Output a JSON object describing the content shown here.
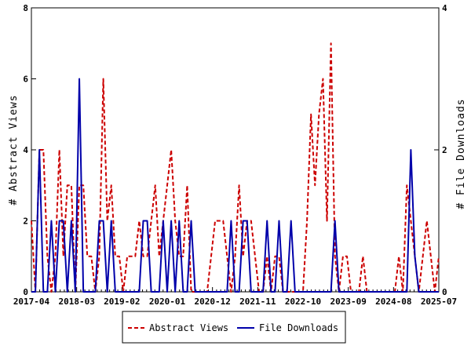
{
  "chart_data": {
    "type": "line",
    "y_left_label": "# Abstract Views",
    "y_right_label": "# File Downloads",
    "y_left_ticks": [
      "0",
      "2",
      "4",
      "6",
      "8"
    ],
    "y_right_ticks": [
      "0",
      "2",
      "4"
    ],
    "ylim_left": [
      0,
      8
    ],
    "ylim_right": [
      0,
      4
    ],
    "x_tick_labels": [
      "2017-04",
      "2018-03",
      "2019-02",
      "2020-01",
      "2020-12",
      "2021-11",
      "2022-10",
      "2023-09",
      "2024-08",
      "2025-07"
    ],
    "x_months": 99,
    "grid": false,
    "legend_position": "bottom-center",
    "series": [
      {
        "name": "Abstract Views",
        "axis": "left",
        "color": "#cc0000",
        "dash": "dashed",
        "values": [
          2,
          0,
          4,
          4,
          1,
          0,
          1,
          4,
          1,
          3,
          3,
          0,
          3,
          3,
          1,
          1,
          0,
          1,
          6,
          2,
          3,
          1,
          1,
          0,
          1,
          1,
          1,
          2,
          1,
          1,
          2,
          3,
          1,
          2,
          3,
          4,
          2,
          1,
          1,
          3,
          0,
          0,
          0,
          0,
          0,
          1,
          2,
          2,
          2,
          1,
          0,
          1,
          3,
          1,
          2,
          2,
          1,
          0,
          0,
          1,
          0,
          1,
          1,
          0,
          0,
          0,
          0,
          0,
          0,
          2,
          5,
          3,
          5,
          6,
          2,
          7,
          1,
          0,
          1,
          1,
          0,
          0,
          0,
          1,
          0,
          0,
          0,
          0,
          0,
          0,
          0,
          0,
          1,
          0,
          3,
          2,
          1,
          0,
          1,
          2,
          1,
          0,
          1
        ]
      },
      {
        "name": "File Downloads",
        "axis": "right",
        "color": "#0000aa",
        "dash": "solid",
        "values": [
          0,
          0,
          2,
          0,
          0,
          1,
          0,
          1,
          1,
          0,
          1,
          0,
          3,
          0,
          0,
          0,
          0,
          1,
          1,
          0,
          1,
          0,
          0,
          0,
          0,
          0,
          0,
          0,
          1,
          1,
          0,
          0,
          0,
          1,
          0,
          1,
          0,
          1,
          0,
          0,
          1,
          0,
          0,
          0,
          0,
          0,
          0,
          0,
          0,
          0,
          1,
          0,
          0,
          1,
          1,
          0,
          0,
          0,
          0,
          1,
          0,
          0,
          1,
          0,
          0,
          1,
          0,
          0,
          0,
          0,
          0,
          0,
          0,
          0,
          0,
          0,
          1,
          0,
          0,
          0,
          0,
          0,
          0,
          0,
          0,
          0,
          0,
          0,
          0,
          0,
          0,
          0,
          0,
          0,
          0,
          2,
          0.5,
          0,
          0,
          0,
          0,
          0,
          0
        ]
      }
    ]
  }
}
